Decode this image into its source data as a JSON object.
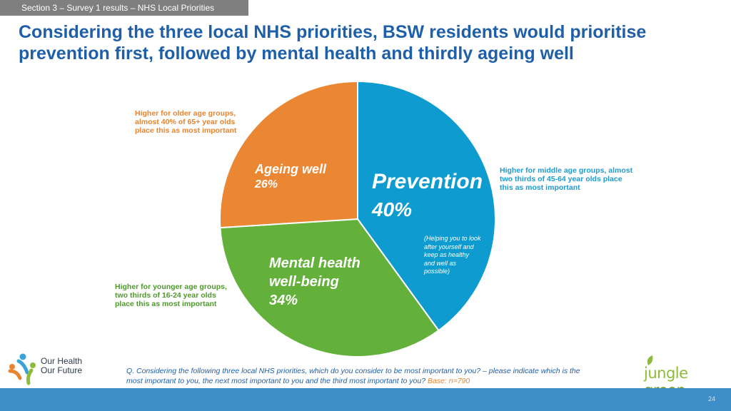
{
  "header": {
    "section": "Section 3 – Survey 1 results – NHS Local Priorities",
    "title": "Considering the three local NHS priorities, BSW residents would prioritise prevention first, followed by mental health and thirdly ageing well"
  },
  "chart_data": {
    "type": "pie",
    "slices": [
      {
        "name": "Prevention",
        "value": 40,
        "label_value": "40%",
        "sublabel": "(Helping you to look after yourself and keep as healthy and well as possible)",
        "color": "#0e9bd0"
      },
      {
        "name": "Mental health well-being",
        "value": 34,
        "label_value": "34%",
        "color": "#63b13a"
      },
      {
        "name": "Ageing well",
        "value": 26,
        "label_value": "26%",
        "color": "#eb8633"
      }
    ],
    "start": "12 o'clock, clockwise"
  },
  "notes": {
    "ageing": "Higher for older age groups, almost 40% of 65+ year olds place this as most important",
    "prevention": "Higher for middle age groups, almost two thirds of 45-64 year olds place this as most important",
    "mental": "Higher for younger age groups, two thirds of 16-24 year olds place this as most important"
  },
  "footer": {
    "question": "Q. Considering the following three local NHS priorities, which do you consider to be most important to you? – please indicate which is the most important to you, the next most important to you and the third most important to you?",
    "base": "Base: n=790",
    "page": "24",
    "logo_left": {
      "line1": "Our Health",
      "line2": "Our Future"
    },
    "logo_right": {
      "part1": "jungle",
      "part2": "green"
    }
  },
  "colors": {
    "accent": "#1f5fa8",
    "orange": "#e8842f",
    "footer": "#3d8ec9"
  }
}
